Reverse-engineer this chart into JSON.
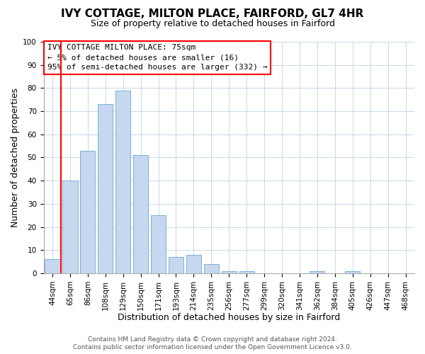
{
  "title": "IVY COTTAGE, MILTON PLACE, FAIRFORD, GL7 4HR",
  "subtitle": "Size of property relative to detached houses in Fairford",
  "xlabel": "Distribution of detached houses by size in Fairford",
  "ylabel": "Number of detached properties",
  "bar_labels": [
    "44sqm",
    "65sqm",
    "86sqm",
    "108sqm",
    "129sqm",
    "150sqm",
    "171sqm",
    "193sqm",
    "214sqm",
    "235sqm",
    "256sqm",
    "277sqm",
    "299sqm",
    "320sqm",
    "341sqm",
    "362sqm",
    "384sqm",
    "405sqm",
    "426sqm",
    "447sqm",
    "468sqm"
  ],
  "bar_values": [
    6,
    40,
    53,
    73,
    79,
    51,
    25,
    7,
    8,
    4,
    1,
    1,
    0,
    0,
    0,
    1,
    0,
    1,
    0,
    0,
    0
  ],
  "bar_color": "#c5d8f0",
  "bar_edge_color": "#7ab0d8",
  "ylim": [
    0,
    100
  ],
  "yticks": [
    0,
    10,
    20,
    30,
    40,
    50,
    60,
    70,
    80,
    90,
    100
  ],
  "red_line_bar_index": 1,
  "annotation_line1": "IVY COTTAGE MILTON PLACE: 75sqm",
  "annotation_line2": "← 5% of detached houses are smaller (16)",
  "annotation_line3": "95% of semi-detached houses are larger (332) →",
  "footer_line1": "Contains HM Land Registry data © Crown copyright and database right 2024.",
  "footer_line2": "Contains public sector information licensed under the Open Government Licence v3.0.",
  "bg_color": "#ffffff",
  "grid_color": "#c8d8e8",
  "title_fontsize": 11,
  "subtitle_fontsize": 9,
  "axis_label_fontsize": 9,
  "tick_fontsize": 7.5,
  "annotation_fontsize": 8,
  "footer_fontsize": 6.5
}
